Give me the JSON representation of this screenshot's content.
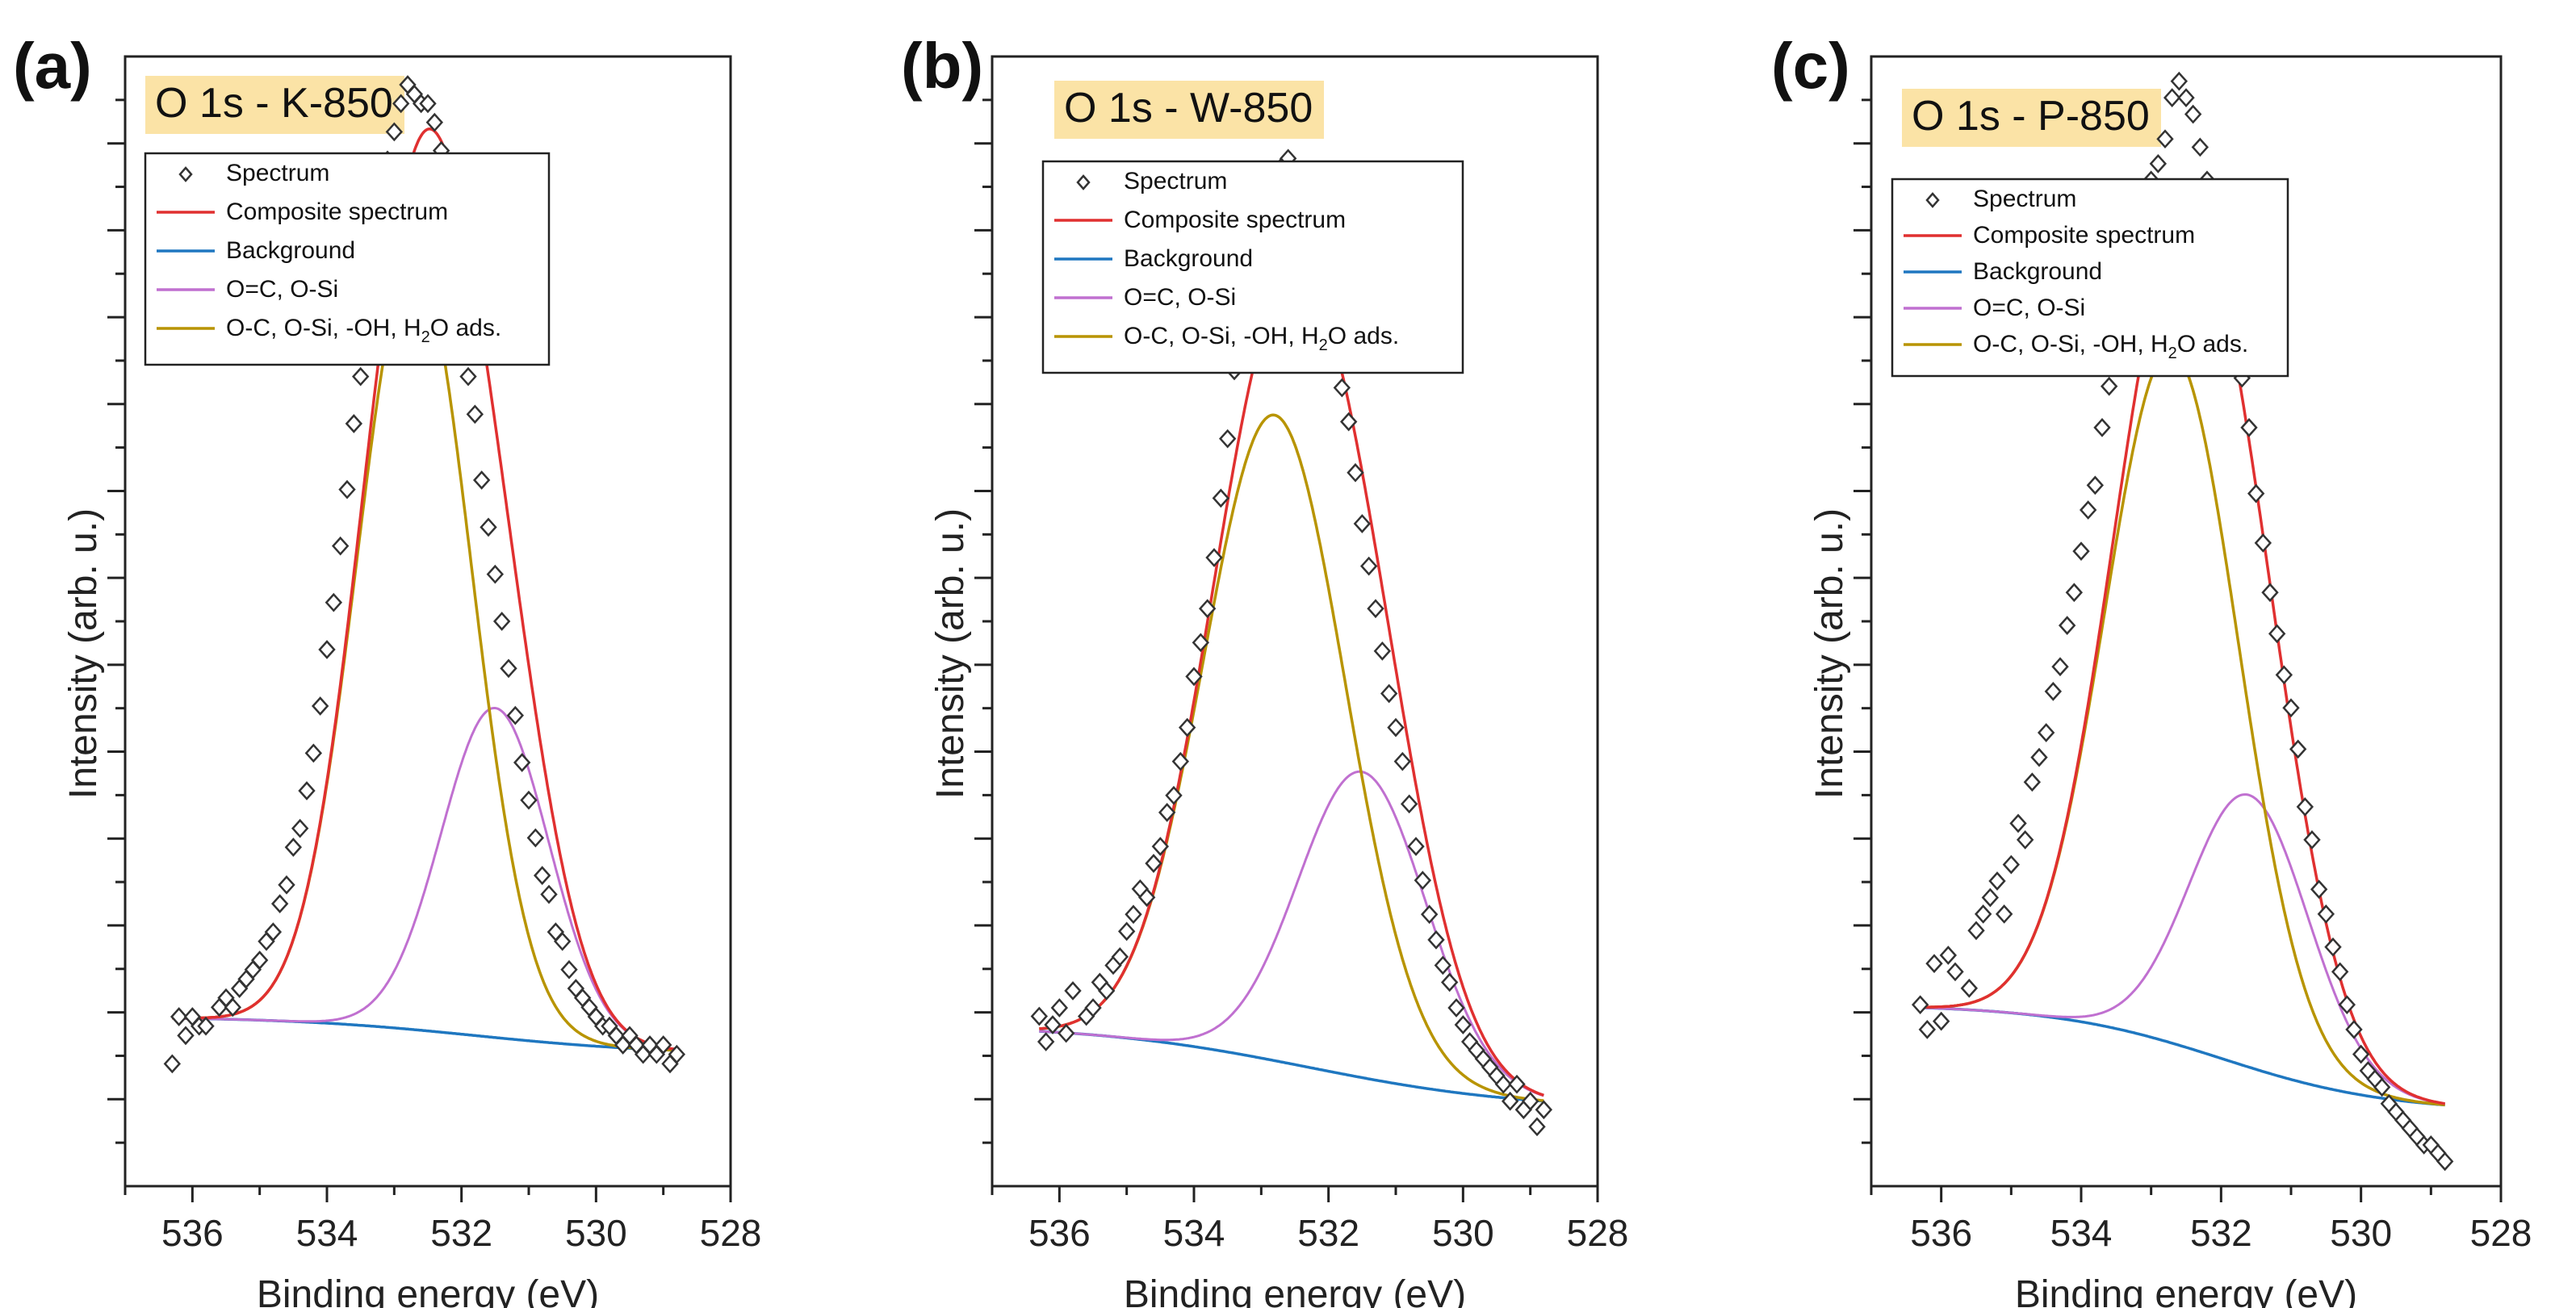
{
  "chart_data": [
    {
      "panel_label": "(a)",
      "title": "O 1s - K-850",
      "type": "line",
      "xlabel": "Binding energy (eV)",
      "ylabel": "Intensity (arb. u.)",
      "xlim": [
        537,
        528
      ],
      "xticks": [
        "536",
        "534",
        "532",
        "530",
        "528"
      ],
      "ylim": [
        -0.15,
        1.05
      ],
      "legend": [
        "Spectrum",
        "Composite spectrum",
        "Background",
        "O=C, O-Si",
        "O-C, O-Si, -OH, H₂O ads."
      ],
      "legend_labels": {
        "spectrum": "Spectrum",
        "composite": "Composite spectrum",
        "background": "Background",
        "peak1": "O=C, O-Si",
        "peak2_a": "O-C, O-Si, -OH, H",
        "peak2_sub": "2",
        "peak2_b": "O ads."
      },
      "colors": {
        "spectrum": "#333333",
        "composite": "#e03030",
        "background": "#1f77c0",
        "peak1": "#c070d0",
        "peak2": "#b89400"
      },
      "background_params": {
        "left": 0.03,
        "right": -0.01,
        "center": 531.8,
        "width": 1.4
      },
      "peaks": [
        {
          "name": "O-C, O-Si, -OH, H2O ads.",
          "center": 532.7,
          "amplitude": 0.82,
          "sigma": 0.85
        },
        {
          "name": "O=C, O-Si",
          "center": 531.5,
          "amplitude": 0.35,
          "sigma": 0.8
        }
      ],
      "spectrum_x": [
        536.3,
        536.2,
        536.1,
        536.0,
        535.9,
        535.8,
        535.6,
        535.5,
        535.4,
        535.3,
        535.2,
        535.1,
        535.0,
        534.9,
        534.8,
        534.7,
        534.6,
        534.5,
        534.4,
        534.3,
        534.2,
        534.1,
        534.0,
        533.9,
        533.8,
        533.7,
        533.6,
        533.5,
        533.4,
        533.3,
        533.2,
        533.1,
        533.0,
        532.9,
        532.8,
        532.7,
        532.6,
        532.5,
        532.4,
        532.3,
        532.2,
        532.1,
        532.0,
        531.9,
        531.8,
        531.7,
        531.6,
        531.5,
        531.4,
        531.3,
        531.2,
        531.1,
        531.0,
        530.9,
        530.8,
        530.7,
        530.6,
        530.5,
        530.4,
        530.3,
        530.2,
        530.1,
        530.0,
        529.9,
        529.8,
        529.7,
        529.6,
        529.5,
        529.4,
        529.3,
        529.2,
        529.1,
        529.0,
        528.9,
        528.8
      ],
      "spectrum_y": [
        -0.02,
        0.03,
        0.01,
        0.03,
        0.02,
        0.02,
        0.04,
        0.05,
        0.04,
        0.06,
        0.07,
        0.08,
        0.09,
        0.11,
        0.12,
        0.15,
        0.17,
        0.21,
        0.23,
        0.27,
        0.31,
        0.36,
        0.42,
        0.47,
        0.53,
        0.59,
        0.66,
        0.71,
        0.78,
        0.84,
        0.9,
        0.94,
        0.97,
        1.0,
        1.02,
        1.01,
        1.0,
        1.0,
        0.98,
        0.95,
        0.91,
        0.84,
        0.78,
        0.71,
        0.67,
        0.6,
        0.55,
        0.5,
        0.45,
        0.4,
        0.35,
        0.3,
        0.26,
        0.22,
        0.18,
        0.16,
        0.12,
        0.11,
        0.08,
        0.06,
        0.05,
        0.04,
        0.03,
        0.02,
        0.02,
        0.01,
        0.0,
        0.01,
        0.0,
        -0.01,
        0.0,
        -0.01,
        0.0,
        -0.02,
        -0.01
      ]
    },
    {
      "panel_label": "(b)",
      "title": "O 1s - W-850",
      "type": "line",
      "xlabel": "Binding energy (eV)",
      "ylabel": "Intensity (arb. u.)",
      "xlim": [
        537,
        528
      ],
      "xticks": [
        "536",
        "534",
        "532",
        "530",
        "528"
      ],
      "ylim": [
        -0.18,
        1.15
      ],
      "legend": [
        "Spectrum",
        "Composite spectrum",
        "Background",
        "O=C, O-Si",
        "O-C, O-Si, -OH, H₂O ads."
      ],
      "legend_labels": {
        "spectrum": "Spectrum",
        "composite": "Composite spectrum",
        "background": "Background",
        "peak1": "O=C, O-Si",
        "peak2_a": "O-C, O-Si, -OH, H",
        "peak2_sub": "2",
        "peak2_b": "O ads."
      },
      "colors": {
        "spectrum": "#333333",
        "composite": "#e03030",
        "background": "#1f77c0",
        "peak1": "#c070d0",
        "peak2": "#b89400"
      },
      "background_params": {
        "left": 0.01,
        "right": -0.09,
        "center": 532.3,
        "width": 1.6
      },
      "peaks": [
        {
          "name": "O-C, O-Si, -OH, H2O ads.",
          "center": 532.8,
          "amplitude": 0.76,
          "sigma": 1.05
        },
        {
          "name": "O=C, O-Si",
          "center": 531.5,
          "amplitude": 0.36,
          "sigma": 0.95
        }
      ],
      "spectrum_x": [
        536.3,
        536.2,
        536.1,
        536.0,
        535.9,
        535.8,
        535.6,
        535.5,
        535.4,
        535.3,
        535.2,
        535.1,
        535.0,
        534.9,
        534.8,
        534.7,
        534.6,
        534.5,
        534.4,
        534.3,
        534.2,
        534.1,
        534.0,
        533.9,
        533.8,
        533.7,
        533.6,
        533.5,
        533.4,
        533.3,
        533.2,
        533.1,
        533.0,
        532.9,
        532.8,
        532.7,
        532.6,
        532.5,
        532.4,
        532.3,
        532.2,
        532.1,
        532.0,
        531.9,
        531.8,
        531.7,
        531.6,
        531.5,
        531.4,
        531.3,
        531.2,
        531.1,
        531.0,
        530.9,
        530.8,
        530.7,
        530.6,
        530.5,
        530.4,
        530.3,
        530.2,
        530.1,
        530.0,
        529.9,
        529.8,
        529.7,
        529.6,
        529.5,
        529.4,
        529.3,
        529.2,
        529.1,
        529.0,
        528.9,
        528.8
      ],
      "spectrum_y": [
        0.02,
        -0.01,
        0.01,
        0.03,
        0.0,
        0.05,
        0.02,
        0.03,
        0.06,
        0.05,
        0.08,
        0.09,
        0.12,
        0.14,
        0.17,
        0.16,
        0.2,
        0.22,
        0.26,
        0.28,
        0.32,
        0.36,
        0.42,
        0.46,
        0.5,
        0.56,
        0.63,
        0.7,
        0.78,
        0.83,
        0.87,
        0.92,
        0.97,
        0.99,
        1.01,
        1.02,
        1.03,
        1.01,
        1.0,
        0.98,
        0.96,
        0.92,
        0.87,
        0.81,
        0.76,
        0.72,
        0.66,
        0.6,
        0.55,
        0.5,
        0.45,
        0.4,
        0.36,
        0.32,
        0.27,
        0.22,
        0.18,
        0.14,
        0.11,
        0.08,
        0.06,
        0.03,
        0.01,
        -0.01,
        -0.02,
        -0.03,
        -0.04,
        -0.05,
        -0.06,
        -0.08,
        -0.06,
        -0.09,
        -0.08,
        -0.11,
        -0.09
      ]
    },
    {
      "panel_label": "(c)",
      "title": "O 1s - P-850",
      "type": "line",
      "xlabel": "Binding energy (eV)",
      "ylabel": "Intensity (arb. u.)",
      "xlim": [
        537,
        528
      ],
      "xticks": [
        "536",
        "534",
        "532",
        "530",
        "528"
      ],
      "ylim": [
        -0.22,
        1.15
      ],
      "legend": [
        "Spectrum",
        "Composite spectrum",
        "Background",
        "O=C, O-Si",
        "O-C, O-Si, -OH, H₂O ads."
      ],
      "legend_labels": {
        "spectrum": "Spectrum",
        "composite": "Composite spectrum",
        "background": "Background",
        "peak1": "O=C, O-Si",
        "peak2_a": "O-C, O-Si, -OH, H",
        "peak2_sub": "2",
        "peak2_b": "O ads."
      },
      "colors": {
        "spectrum": "#333333",
        "composite": "#e03030",
        "background": "#1f77c0",
        "peak1": "#c070d0",
        "peak2": "#b89400"
      },
      "background_params": {
        "left": 0.0,
        "right": -0.13,
        "center": 532.0,
        "width": 1.2
      },
      "peaks": [
        {
          "name": "O-C, O-Si, -OH, H2O ads.",
          "center": 532.7,
          "amplitude": 0.84,
          "sigma": 0.95
        },
        {
          "name": "O=C, O-Si",
          "center": 531.6,
          "amplitude": 0.33,
          "sigma": 0.85
        }
      ],
      "spectrum_x": [
        536.3,
        536.2,
        536.1,
        536.0,
        535.9,
        535.8,
        535.6,
        535.5,
        535.4,
        535.3,
        535.2,
        535.1,
        535.0,
        534.9,
        534.8,
        534.7,
        534.6,
        534.5,
        534.4,
        534.3,
        534.2,
        534.1,
        534.0,
        533.9,
        533.8,
        533.7,
        533.6,
        533.5,
        533.4,
        533.3,
        533.2,
        533.1,
        533.0,
        532.9,
        532.8,
        532.7,
        532.6,
        532.5,
        532.4,
        532.3,
        532.2,
        532.1,
        532.0,
        531.9,
        531.8,
        531.7,
        531.6,
        531.5,
        531.4,
        531.3,
        531.2,
        531.1,
        531.0,
        530.9,
        530.8,
        530.7,
        530.6,
        530.5,
        530.4,
        530.3,
        530.2,
        530.1,
        530.0,
        529.9,
        529.8,
        529.7,
        529.6,
        529.5,
        529.4,
        529.3,
        529.2,
        529.1,
        529.0,
        528.9,
        528.8
      ],
      "spectrum_y": [
        0.0,
        -0.03,
        0.05,
        -0.02,
        0.06,
        0.04,
        0.02,
        0.09,
        0.11,
        0.13,
        0.15,
        0.11,
        0.17,
        0.22,
        0.2,
        0.27,
        0.3,
        0.33,
        0.38,
        0.41,
        0.46,
        0.5,
        0.55,
        0.6,
        0.63,
        0.7,
        0.75,
        0.83,
        0.87,
        0.92,
        0.97,
        0.94,
        1.0,
        1.02,
        1.05,
        1.1,
        1.12,
        1.1,
        1.08,
        1.04,
        1.0,
        0.98,
        0.93,
        0.88,
        0.82,
        0.76,
        0.7,
        0.62,
        0.56,
        0.5,
        0.45,
        0.4,
        0.36,
        0.31,
        0.24,
        0.2,
        0.14,
        0.11,
        0.07,
        0.04,
        0.0,
        -0.03,
        -0.06,
        -0.08,
        -0.09,
        -0.1,
        -0.12,
        -0.13,
        -0.14,
        -0.15,
        -0.16,
        -0.17,
        -0.17,
        -0.18,
        -0.19
      ]
    }
  ]
}
